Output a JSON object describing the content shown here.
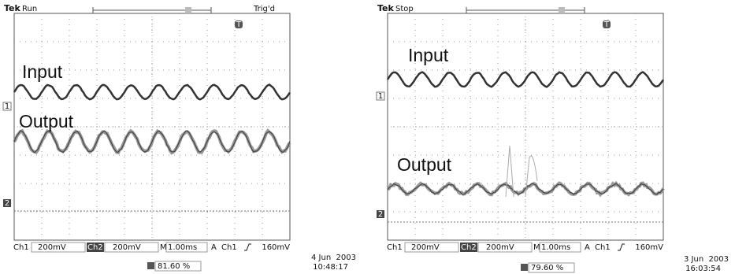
{
  "panels": [
    {
      "brand": "Tek",
      "status": "Run",
      "trigger_state": "Trig'd",
      "input_label": "Input",
      "output_label": "Output",
      "ch1_marker": "1",
      "ch2_marker": "2",
      "trigger_marker": "T",
      "readout": {
        "ch1": "Ch1",
        "ch1_scale": "200mV",
        "ch2": "Ch2",
        "ch2_scale": "200mV",
        "timebase_prefix": "M",
        "timebase": "1.00ms",
        "trigger_mode": "A",
        "trigger_source": "Ch1",
        "trigger_level": "160mV"
      },
      "measurement": "81.60 %",
      "date": "4 Jun  2003",
      "time": "10:48:17"
    },
    {
      "brand": "Tek",
      "status": "Stop",
      "input_label": "Input",
      "output_label": "Output",
      "ch1_marker": "1",
      "ch2_marker": "2",
      "trigger_marker": "T",
      "readout": {
        "ch1": "Ch1",
        "ch1_scale": "200mV",
        "ch2": "Ch2",
        "ch2_scale": "200mV",
        "timebase_prefix": "M",
        "timebase": "1.00ms",
        "trigger_mode": "A",
        "trigger_source": "Ch1",
        "trigger_level": "160mV"
      },
      "measurement": "79.60 %",
      "date": "3 Jun  2003",
      "time": "16:03:54"
    }
  ]
}
